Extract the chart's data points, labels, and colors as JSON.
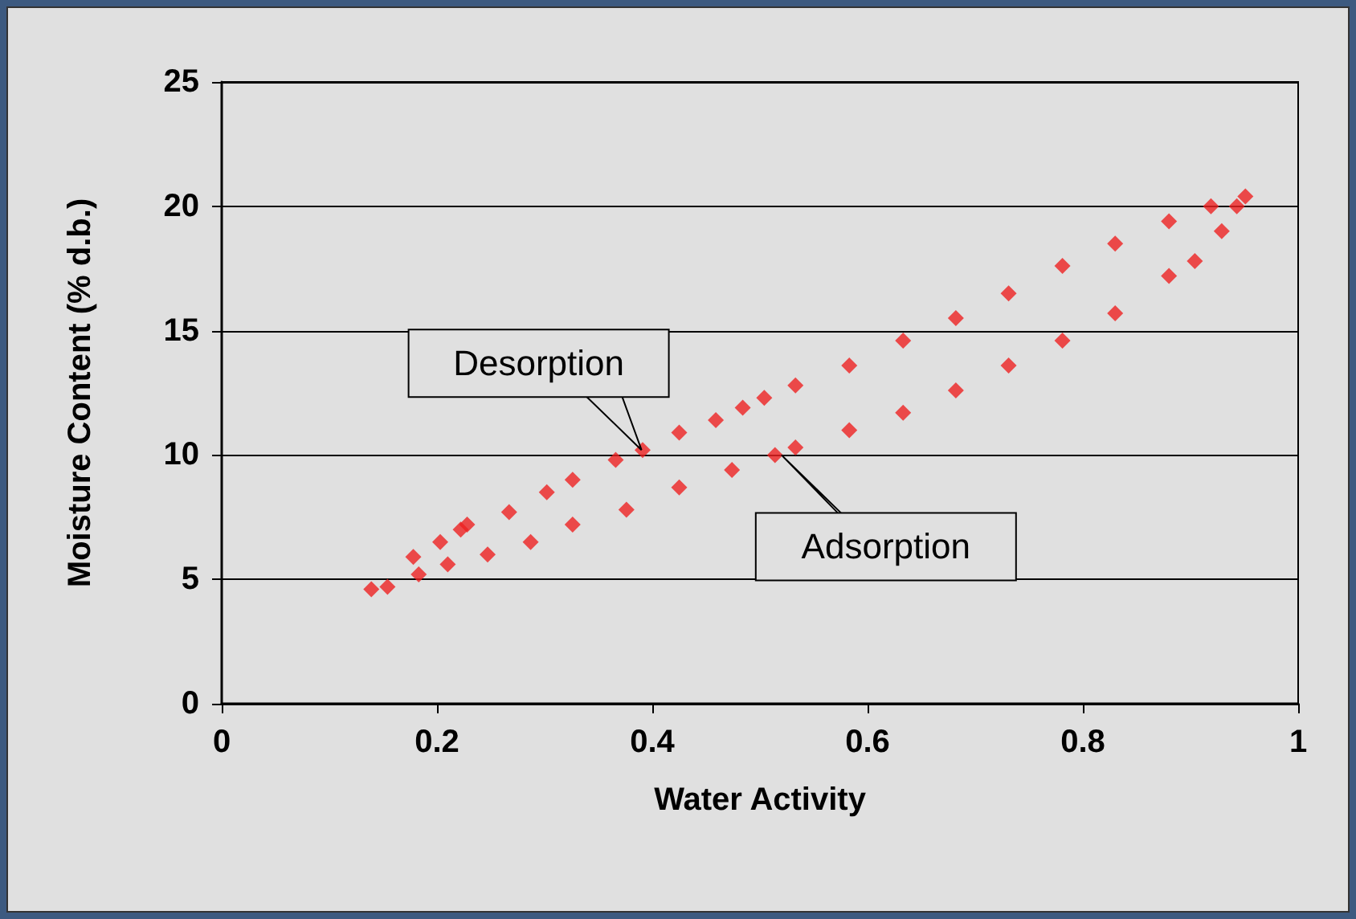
{
  "chart_data": {
    "type": "scatter",
    "xlabel": "Water Activity",
    "ylabel": "Moisture Content (% d.b.)",
    "marker": "diamond",
    "grid": "y",
    "xlim": [
      0,
      1
    ],
    "xticks": [
      0,
      0.2,
      0.4,
      0.6,
      0.8,
      1
    ],
    "ylim": [
      0,
      25
    ],
    "yticks": [
      0,
      5,
      10,
      15,
      20,
      25
    ],
    "series": [
      {
        "color": "#ee2222",
        "x": [
          0.139,
          0.178,
          0.203,
          0.222,
          0.228,
          0.267,
          0.302,
          0.326,
          0.366,
          0.391,
          0.425,
          0.459,
          0.484,
          0.504,
          0.533,
          0.583,
          0.633,
          0.682,
          0.731,
          0.781,
          0.83,
          0.88,
          0.919,
          0.951
        ],
        "values": [
          4.6,
          5.9,
          6.5,
          7.0,
          7.2,
          7.7,
          8.5,
          9.0,
          9.8,
          10.2,
          10.9,
          11.4,
          11.9,
          12.3,
          12.8,
          13.6,
          14.6,
          15.5,
          16.5,
          17.6,
          18.5,
          19.4,
          20.0,
          20.4
        ]
      },
      {
        "color": "#ee2222",
        "x": [
          0.154,
          0.183,
          0.21,
          0.247,
          0.287,
          0.326,
          0.376,
          0.425,
          0.474,
          0.514,
          0.533,
          0.583,
          0.633,
          0.682,
          0.731,
          0.781,
          0.83,
          0.88,
          0.904,
          0.929,
          0.943
        ],
        "values": [
          4.7,
          5.2,
          5.6,
          6.0,
          6.5,
          7.2,
          7.8,
          8.7,
          9.4,
          10.0,
          10.3,
          11.0,
          11.7,
          12.6,
          13.6,
          14.6,
          15.7,
          17.2,
          17.8,
          19.0,
          20.0
        ]
      }
    ],
    "annotations": [
      {
        "text": "Desorption",
        "x": 0.39,
        "y": 10.2
      },
      {
        "text": "Adsorption",
        "x": 0.52,
        "y": 10
      }
    ]
  }
}
